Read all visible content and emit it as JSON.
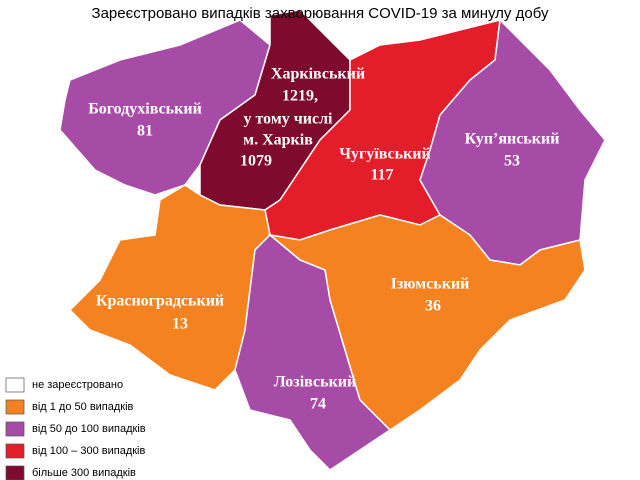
{
  "title": "Зареєстровано випадків захворювання COVID-19 за минулу добу",
  "regions": [
    {
      "name": "Богодухівський",
      "value": 81,
      "color": "#a64ca6"
    },
    {
      "name": "Харківський",
      "value": 1219,
      "value_label": "1219,",
      "note": "у тому числі",
      "city": "м. Харків",
      "city_value": 1079,
      "color": "#7e0a2e"
    },
    {
      "name": "Чугуївський",
      "value": 117,
      "color": "#e31e2a"
    },
    {
      "name": "Куп’янський",
      "value": 53,
      "color": "#a64ca6"
    },
    {
      "name": "Красноградський",
      "value": 13,
      "color": "#f58220"
    },
    {
      "name": "Ізюмський",
      "value": 36,
      "color": "#f58220"
    },
    {
      "name": "Лозівський",
      "value": 74,
      "color": "#a64ca6"
    }
  ],
  "legend": [
    {
      "label": "не зареєстровано",
      "color": "#ffffff"
    },
    {
      "label": "від 1 до 50  випадків",
      "color": "#f58220"
    },
    {
      "label": "від 50 до 100  випадків",
      "color": "#a64ca6"
    },
    {
      "label": "від 100 – 300  випадків",
      "color": "#e31e2a"
    },
    {
      "label": "більше 300  випадків",
      "color": "#7e0a2e"
    }
  ]
}
